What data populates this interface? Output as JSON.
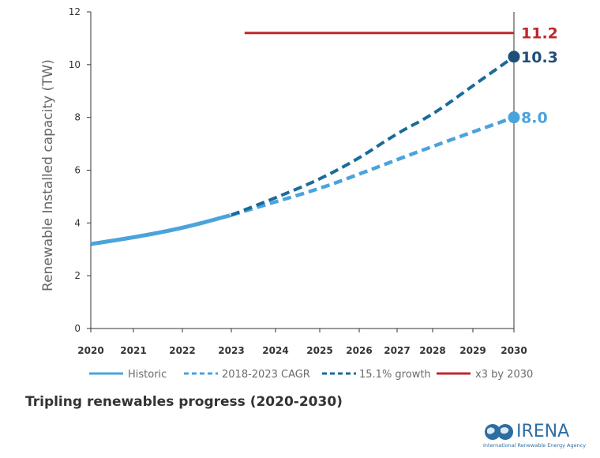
{
  "chart_data": {
    "type": "line",
    "title": "",
    "caption": "Tripling renewables progress (2020-2030)",
    "xlabel": "",
    "ylabel": "Renewable Installed capacity (TW)",
    "x_ticks": [
      "2020",
      "2021",
      "2022",
      "2023",
      "2024",
      "2025",
      "2026",
      "2027",
      "2028",
      "2029",
      "2030"
    ],
    "y_ticks": [
      "0",
      "2",
      "4",
      "6",
      "8",
      "10",
      "12"
    ],
    "ylim": [
      0,
      12
    ],
    "grid": false,
    "legend_position": "bottom",
    "series": [
      {
        "name": "Historic",
        "style": "solid",
        "color": "#4ba3dc",
        "points": [
          [
            2020,
            3.2
          ],
          [
            2021,
            3.45
          ],
          [
            2022,
            3.8
          ],
          [
            2023,
            4.3
          ]
        ]
      },
      {
        "name": "2018-2023 CAGR",
        "style": "dashed",
        "color": "#4ba3dc",
        "points": [
          [
            2023,
            4.3
          ],
          [
            2024,
            4.8
          ],
          [
            2025,
            5.3
          ],
          [
            2026,
            5.85
          ],
          [
            2027,
            6.4
          ],
          [
            2028,
            6.9
          ],
          [
            2029,
            7.45
          ],
          [
            2030,
            8.0
          ]
        ],
        "end_label": "8.0"
      },
      {
        "name": "15.1% growth",
        "style": "dashed",
        "color": "#1a6b9a",
        "points": [
          [
            2023,
            4.3
          ],
          [
            2024,
            4.95
          ],
          [
            2025,
            5.65
          ],
          [
            2026,
            6.45
          ],
          [
            2027,
            7.4
          ],
          [
            2028,
            8.1
          ],
          [
            2029,
            9.2
          ],
          [
            2030,
            10.3
          ]
        ],
        "end_label": "10.3"
      },
      {
        "name": "x3 by 2030",
        "style": "solid",
        "color": "#c0272d",
        "points": [
          [
            2023.3,
            11.2
          ],
          [
            2030,
            11.2
          ]
        ],
        "end_label": "11.2"
      }
    ]
  },
  "end_label_colors": {
    "CAGR": "#4ba3dc",
    "growth": "#1f4e79",
    "target": "#c0272d"
  },
  "logo": {
    "name": "IRENA",
    "tagline": "International Renewable Energy Agency",
    "icon": "globe-icon"
  }
}
